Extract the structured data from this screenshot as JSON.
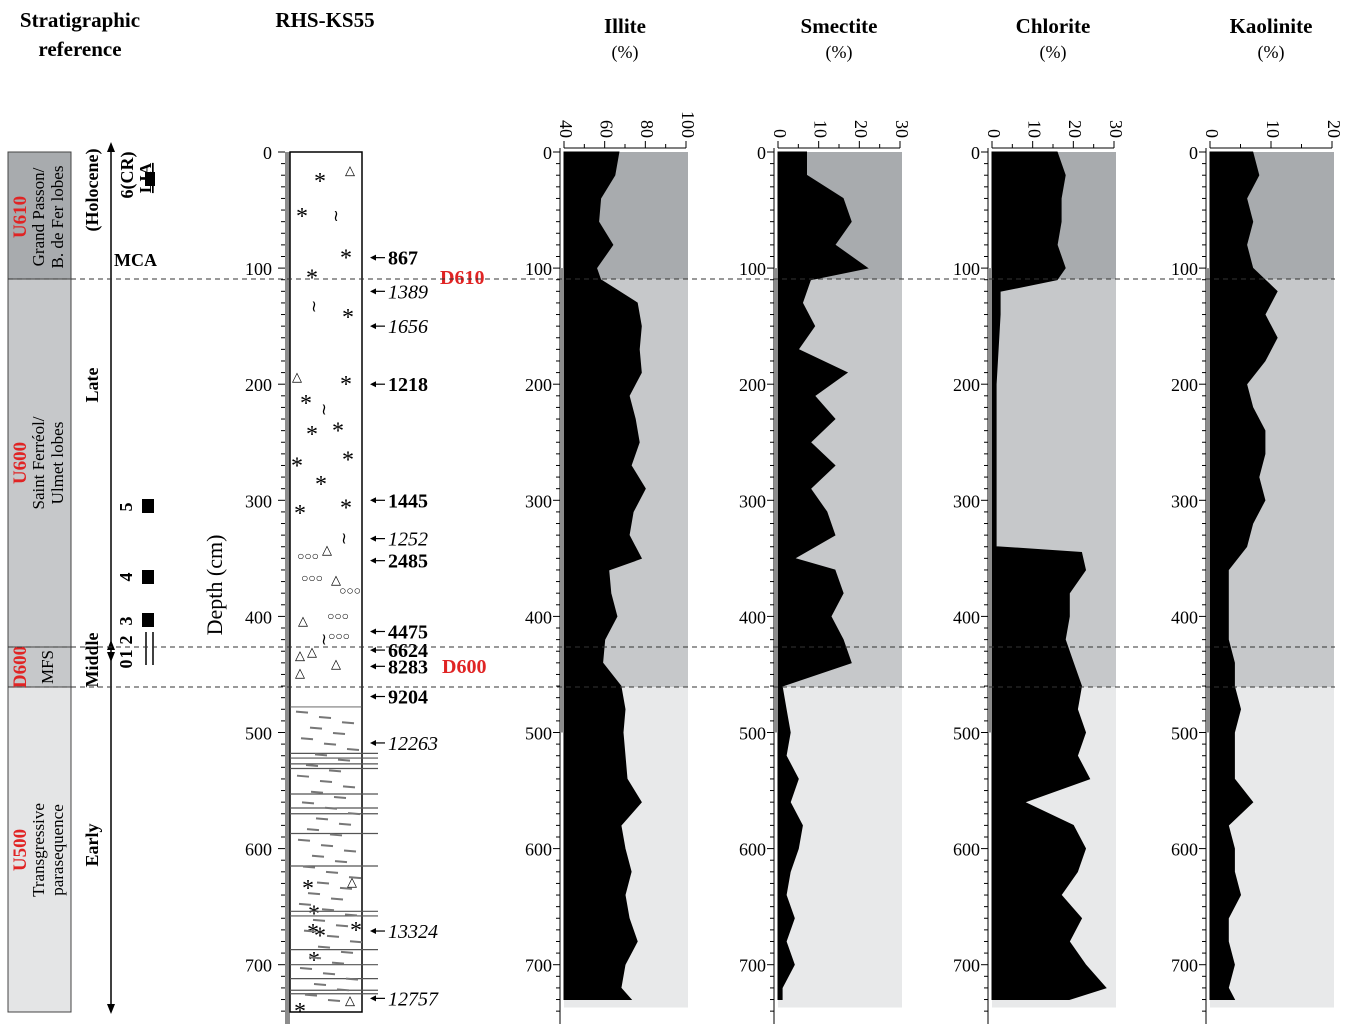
{
  "headers": {
    "strat_line1": "Stratigraphic",
    "strat_line2": "reference",
    "core": "RHS-KS55",
    "unit": "(%)"
  },
  "units": [
    {
      "code": "U610",
      "desc1": "Grand Passon/",
      "desc2": "B. de Fer lobes"
    },
    {
      "code": "U600",
      "desc1": "Saint Ferréol/",
      "desc2": "Ulmet lobes"
    },
    {
      "code": "D600",
      "desc1": "MFS",
      "desc2": ""
    },
    {
      "code": "U500",
      "desc1": "Transgressive",
      "desc2": "parasequence"
    }
  ],
  "periods": {
    "holocene": "(Holocene)",
    "late": "Late",
    "middle": "Middle",
    "early": "Early",
    "mca": "MCA"
  },
  "markers": {
    "m0": "0",
    "m1": "1",
    "m2": "2",
    "m3": "3",
    "m4": "4",
    "m5": "5",
    "top1": "6(CR)",
    "top2": "LIA"
  },
  "depth_label": "Depth (cm)",
  "depth_ticks": [
    "0",
    "100",
    "200",
    "300",
    "400",
    "500",
    "600",
    "700"
  ],
  "boundaries": {
    "d610": "D610",
    "d600": "D600"
  },
  "ages": [
    {
      "label": "867",
      "depth": 91,
      "style": "bold"
    },
    {
      "label": "1389",
      "depth": 120,
      "style": "italic"
    },
    {
      "label": "1656",
      "depth": 150,
      "style": "italic"
    },
    {
      "label": "1218",
      "depth": 200,
      "style": "bold"
    },
    {
      "label": "1445",
      "depth": 300,
      "style": "bold"
    },
    {
      "label": "1252",
      "depth": 333,
      "style": "italic"
    },
    {
      "label": "2485",
      "depth": 352,
      "style": "bold"
    },
    {
      "label": "4475",
      "depth": 413,
      "style": "bold"
    },
    {
      "label": "6624",
      "depth": 429,
      "style": "bold"
    },
    {
      "label": "8283",
      "depth": 443,
      "style": "bold"
    },
    {
      "label": "9204",
      "depth": 469,
      "style": "bold"
    },
    {
      "label": "12263",
      "depth": 509,
      "style": "italic"
    },
    {
      "label": "13324",
      "depth": 671,
      "style": "italic"
    },
    {
      "label": "12757",
      "depth": 729,
      "style": "italic"
    }
  ],
  "chart_data": [
    {
      "type": "area",
      "title": "Illite",
      "unit": "(%)",
      "xlim": [
        40,
        100
      ],
      "x_ticks": [
        "40",
        "60",
        "80",
        "100"
      ],
      "ylim": [
        0,
        740
      ],
      "depth": [
        0,
        20,
        40,
        60,
        80,
        100,
        110,
        130,
        150,
        170,
        190,
        210,
        230,
        250,
        270,
        290,
        310,
        330,
        350,
        360,
        380,
        400,
        420,
        440,
        460,
        480,
        500,
        520,
        540,
        560,
        580,
        600,
        620,
        640,
        660,
        680,
        700,
        720,
        730
      ],
      "values": [
        67,
        65,
        58,
        57,
        64,
        56,
        58,
        76,
        78,
        77,
        78,
        72,
        75,
        77,
        73,
        80,
        74,
        72,
        78,
        62,
        63,
        66,
        60,
        59,
        68,
        70,
        69,
        70,
        71,
        78,
        68,
        70,
        73,
        70,
        72,
        76,
        70,
        68,
        73
      ]
    },
    {
      "type": "area",
      "title": "Smectite",
      "unit": "(%)",
      "xlim": [
        0,
        30
      ],
      "x_ticks": [
        "0",
        "10",
        "20",
        "30"
      ],
      "ylim": [
        0,
        740
      ],
      "depth": [
        0,
        20,
        40,
        60,
        80,
        100,
        110,
        130,
        150,
        170,
        190,
        210,
        230,
        250,
        270,
        290,
        310,
        330,
        350,
        360,
        380,
        400,
        420,
        440,
        460,
        480,
        500,
        520,
        540,
        560,
        580,
        600,
        620,
        640,
        660,
        680,
        700,
        720,
        730
      ],
      "values": [
        7,
        7,
        16,
        18,
        14,
        22,
        8,
        6,
        9,
        5,
        17,
        9,
        14,
        8,
        14,
        8,
        12,
        14,
        4,
        14,
        16,
        13,
        16,
        18,
        1,
        2,
        3,
        2,
        5,
        3,
        6,
        5,
        3,
        2,
        4,
        2,
        4,
        1,
        1
      ]
    },
    {
      "type": "area",
      "title": "Chlorite",
      "unit": "(%)",
      "xlim": [
        0,
        30
      ],
      "x_ticks": [
        "0",
        "10",
        "20",
        "30"
      ],
      "ylim": [
        0,
        740
      ],
      "depth": [
        0,
        20,
        40,
        60,
        80,
        100,
        110,
        120,
        140,
        200,
        250,
        300,
        340,
        345,
        360,
        380,
        400,
        420,
        440,
        460,
        480,
        500,
        520,
        540,
        560,
        580,
        600,
        620,
        640,
        660,
        680,
        700,
        720,
        730
      ],
      "values": [
        16,
        18,
        17,
        17,
        16,
        18,
        16,
        2,
        2,
        1,
        1,
        1,
        1,
        22,
        23,
        19,
        19,
        18,
        20,
        22,
        21,
        23,
        21,
        24,
        8,
        20,
        23,
        21,
        17,
        22,
        19,
        23,
        28,
        19
      ]
    },
    {
      "type": "area",
      "title": "Kaolinite",
      "unit": "(%)",
      "xlim": [
        0,
        20
      ],
      "x_ticks": [
        "0",
        "10",
        "20"
      ],
      "ylim": [
        0,
        740
      ],
      "depth": [
        0,
        20,
        40,
        60,
        80,
        100,
        110,
        120,
        140,
        160,
        180,
        200,
        220,
        240,
        260,
        280,
        300,
        320,
        340,
        360,
        380,
        400,
        420,
        440,
        460,
        480,
        500,
        520,
        540,
        560,
        580,
        600,
        620,
        640,
        660,
        680,
        700,
        720,
        730
      ],
      "values": [
        7,
        8,
        6,
        7,
        6,
        7,
        9,
        11,
        9,
        11,
        9,
        6,
        7,
        9,
        9,
        8,
        9,
        7,
        6,
        3,
        3,
        3,
        3,
        4,
        4,
        5,
        4,
        4,
        4,
        7,
        3,
        4,
        4,
        5,
        3,
        3,
        4,
        3,
        4
      ]
    }
  ]
}
